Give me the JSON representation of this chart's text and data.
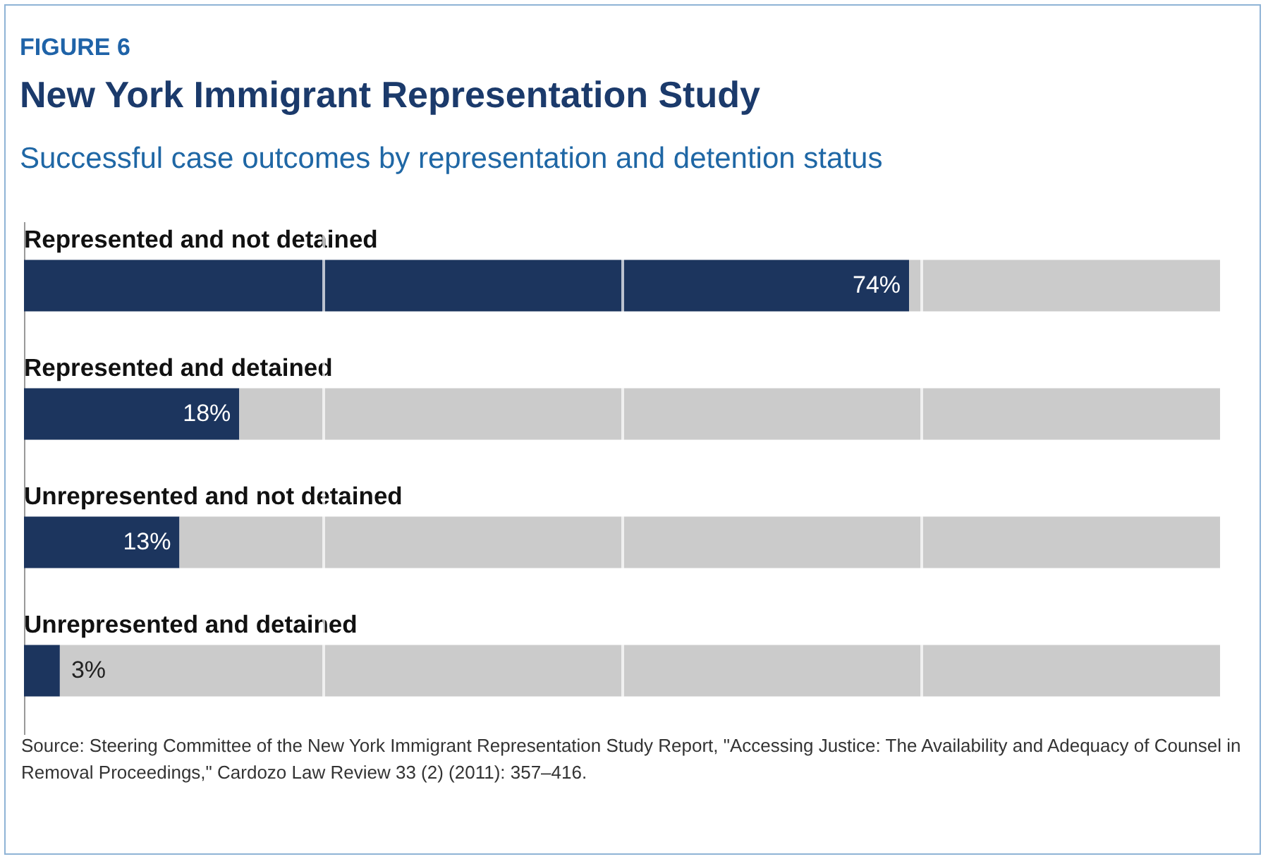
{
  "chart_data": {
    "type": "bar",
    "title": "New York Immigrant Representation Study",
    "subtitle": "Successful case outcomes by representation and detention status",
    "annotations": [
      "FIGURE 6",
      "Source: Steering Committee of the New York Immigrant Representation Study Report, \"Accessing Justice: The Availability and Adequacy of Counsel in Removal Proceedings,\" Cardozo Law Review 33 (2) (2011): 357–416."
    ],
    "categories": [
      "Represented and not detained",
      "Represented and detained",
      "Unrepresented and not detained",
      "Unrepresented and detained"
    ],
    "orientation": "horizontal",
    "stacked": true,
    "series": [
      {
        "color": "#1c355e",
        "values": [
          74,
          18,
          13,
          3
        ],
        "value_labels": [
          "74%",
          "18%",
          "13%",
          "3%"
        ]
      },
      {
        "color": "#cbcbcb",
        "values": [
          26,
          82,
          87,
          97
        ]
      }
    ],
    "xlim": [
      0,
      100
    ],
    "xticks": [
      25,
      50,
      75
    ],
    "grid": "x",
    "tick_labels": "y"
  }
}
